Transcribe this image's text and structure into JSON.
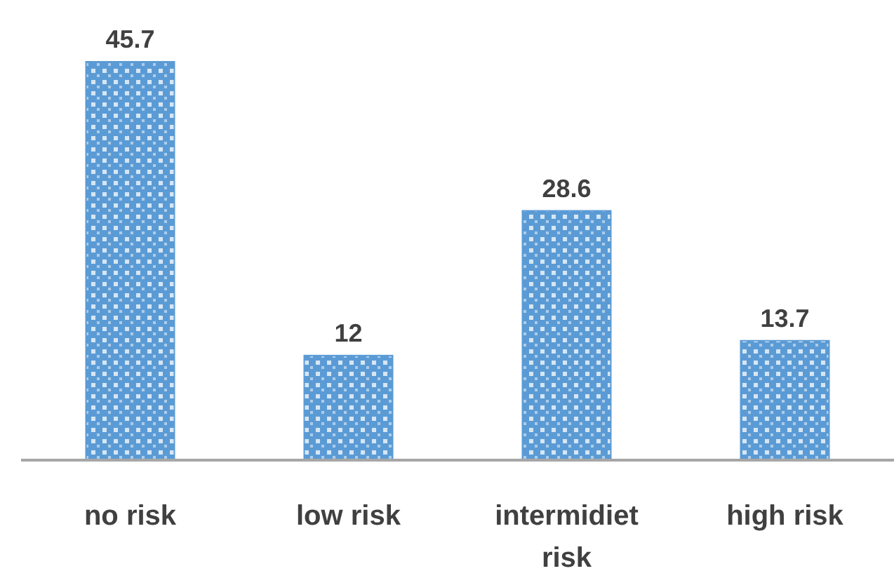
{
  "chart_data": {
    "type": "bar",
    "categories": [
      "no risk",
      "low risk",
      "intermidiet risk",
      "high risk"
    ],
    "values": [
      45.7,
      12,
      28.6,
      13.7
    ],
    "color": "#5b9bd5",
    "data_labels": true
  }
}
